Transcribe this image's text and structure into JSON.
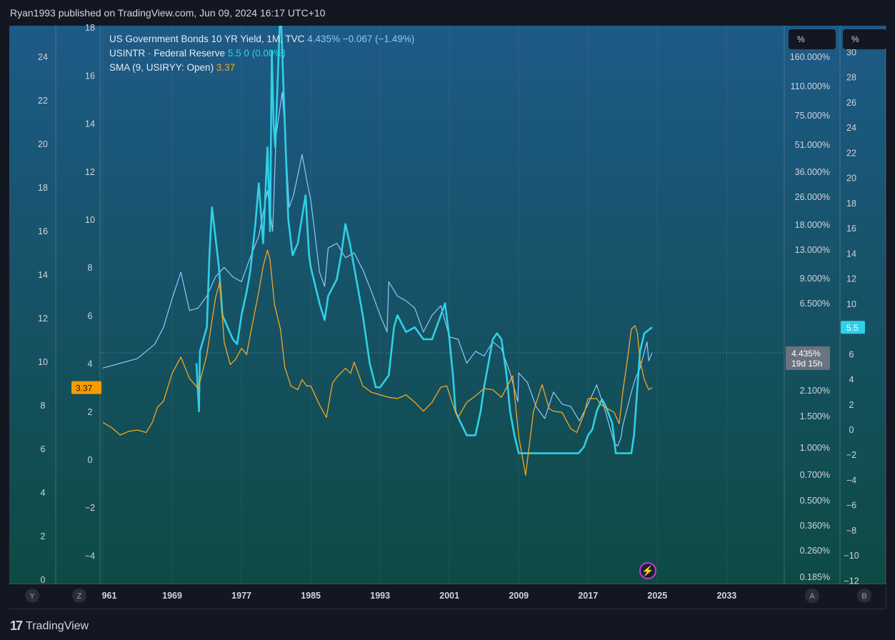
{
  "header": {
    "published_text": "Ryan1993 published on TradingView.com, Jun 09, 2024 16:17 UTC+10"
  },
  "footer": {
    "brand": "TradingView",
    "logo_glyph": "17"
  },
  "legend": {
    "bond": {
      "title": "US Government Bonds 10 YR Yield, 1M, TVC",
      "values": "4.435%  −0.067 (−1.49%)"
    },
    "fed": {
      "title": "USINTR · Federal Reserve",
      "values": "5.5  0 (0.00%)"
    },
    "sma": {
      "title": "SMA (9, USIRYY: Open)",
      "values": "3.37"
    }
  },
  "colors": {
    "bg_top": "#1e5a86",
    "bg_bottom": "#0e4a44",
    "bond": "#8fc8ff",
    "fed": "#2fd0e6",
    "sma": "#f5a623",
    "badge_bond": "#6b7280",
    "badge_fed": "#2fd0e6",
    "badge_sma": "#f59c00"
  },
  "axis_labels": {
    "outer_left": [
      "24",
      "22",
      "20",
      "18",
      "16",
      "14",
      "12",
      "10",
      "8",
      "6",
      "4",
      "2",
      "0"
    ],
    "inner_left": [
      "18",
      "16",
      "14",
      "12",
      "10",
      "8",
      "6",
      "4",
      "2",
      "0",
      "−2",
      "−4"
    ],
    "log_right": [
      "160.000%",
      "110.000%",
      "75.000%",
      "51.000%",
      "36.000%",
      "26.000%",
      "18.000%",
      "13.000%",
      "9.000%",
      "6.500%",
      "3.100%",
      "2.100%",
      "1.500%",
      "1.000%",
      "0.700%",
      "0.500%",
      "0.360%",
      "0.260%",
      "0.185%"
    ],
    "far_right": [
      "30",
      "28",
      "26",
      "24",
      "22",
      "20",
      "18",
      "16",
      "14",
      "12",
      "10",
      "8",
      "6",
      "4",
      "2",
      "0",
      "−2",
      "−4",
      "−6",
      "−8",
      "−10",
      "−12"
    ],
    "time": [
      "961",
      "1969",
      "1977",
      "1985",
      "1993",
      "2001",
      "2009",
      "2017",
      "2025",
      "2033"
    ],
    "pct_unit": "%",
    "scale_buttons": [
      "Y",
      "Z",
      "A",
      "B"
    ]
  },
  "badges": {
    "bond_value": "4.435%",
    "bond_countdown": "19d 15h",
    "fed_value": "5.5",
    "sma_value": "3.37"
  },
  "chart_data": {
    "type": "line",
    "x_unit": "year",
    "xlim": [
      1960.5,
      2037
    ],
    "series": [
      {
        "name": "US Government Bonds 10 YR Yield, 1M, TVC",
        "scale": "inner-left",
        "x": [
          1961,
          1963,
          1965,
          1967,
          1968,
          1969,
          1970,
          1971,
          1972,
          1973,
          1974,
          1975,
          1976,
          1977,
          1978,
          1979,
          1980,
          1980.6,
          1981,
          1981.7,
          1982,
          1982.5,
          1983,
          1984,
          1984.6,
          1985,
          1986,
          1986.6,
          1987,
          1988,
          1989,
          1990,
          1991,
          1992,
          1993,
          1993.8,
          1994,
          1995,
          1996,
          1997,
          1998,
          1999,
          2000,
          2001,
          2002,
          2003,
          2004,
          2005,
          2006,
          2007,
          2008,
          2008.9,
          2009,
          2010,
          2011,
          2012,
          2013,
          2014,
          2015,
          2016,
          2017,
          2018,
          2019,
          2020,
          2020.4,
          2020.8,
          2021,
          2022,
          2022.5,
          2023,
          2023.8,
          2024,
          2024.4
        ],
        "values": [
          3.8,
          4.0,
          4.2,
          4.8,
          5.5,
          6.7,
          7.8,
          6.2,
          6.3,
          6.8,
          7.6,
          8.0,
          7.6,
          7.4,
          8.4,
          9.3,
          11.2,
          9.5,
          13.5,
          15.3,
          13.8,
          10.5,
          11.0,
          12.7,
          11.5,
          10.8,
          7.8,
          7.2,
          8.8,
          9.0,
          8.4,
          8.6,
          7.9,
          7.0,
          6.0,
          5.3,
          7.4,
          6.8,
          6.6,
          6.3,
          5.3,
          6.0,
          6.4,
          5.1,
          5.0,
          4.0,
          4.5,
          4.3,
          4.9,
          4.6,
          3.6,
          2.4,
          3.6,
          3.2,
          2.2,
          1.7,
          2.8,
          2.3,
          2.2,
          1.6,
          2.3,
          3.1,
          2.0,
          0.7,
          0.55,
          0.9,
          1.4,
          2.8,
          3.4,
          3.8,
          4.9,
          4.1,
          4.44
        ]
      },
      {
        "name": "USINTR · Federal Reserve",
        "scale": "inner-left",
        "x": [
          1971.8,
          1972.1,
          1972.2,
          1973,
          1973.3,
          1973.6,
          1974.4,
          1974.8,
          1975.4,
          1976,
          1976.5,
          1977,
          1977.6,
          1978,
          1978.6,
          1979,
          1979.5,
          1980,
          1980.3,
          1980.5,
          1980.7,
          1980.9,
          1981.2,
          1981.5,
          1982,
          1982.4,
          1982.9,
          1983.5,
          1984.4,
          1984.8,
          1985,
          1986,
          1986.6,
          1987,
          1988,
          1988.5,
          1989,
          1989.5,
          1990,
          1991,
          1991.8,
          1992.5,
          1993,
          1994,
          1994.6,
          1995,
          1996,
          1997,
          1998,
          1999,
          2000,
          2000.5,
          2001,
          2001.4,
          2001.7,
          2002,
          2003,
          2004,
          2004.6,
          2005,
          2006,
          2006.5,
          2007,
          2007.6,
          2008,
          2008.5,
          2009,
          2010,
          2015.9,
          2016.5,
          2017,
          2017.5,
          2018,
          2018.6,
          2019,
          2019.8,
          2020.2,
          2021,
          2022,
          2022.3,
          2022.6,
          2022.9,
          2023,
          2023.5,
          2024.4
        ],
        "values": [
          4.0,
          2.0,
          4.5,
          5.5,
          8.5,
          10.5,
          8.0,
          6.0,
          5.5,
          5.0,
          4.8,
          6.0,
          7.0,
          7.8,
          9.8,
          11.5,
          9.0,
          13.0,
          9.5,
          17.0,
          14.0,
          13.0,
          16.0,
          19.0,
          14.0,
          10.0,
          8.5,
          9.0,
          11.0,
          8.5,
          8.0,
          6.5,
          5.8,
          6.8,
          7.5,
          8.5,
          9.8,
          9.0,
          8.0,
          6.0,
          4.0,
          3.0,
          3.0,
          3.5,
          5.5,
          6.0,
          5.3,
          5.5,
          5.0,
          5.0,
          6.0,
          6.5,
          5.0,
          3.5,
          2.0,
          1.75,
          1.0,
          1.0,
          2.0,
          3.0,
          5.0,
          5.25,
          5.0,
          3.5,
          2.0,
          1.0,
          0.25,
          0.25,
          0.25,
          0.5,
          1.0,
          1.25,
          2.0,
          2.5,
          2.25,
          1.5,
          0.25,
          0.25,
          0.25,
          1.0,
          2.5,
          4.0,
          4.5,
          5.25,
          5.5
        ]
      },
      {
        "name": "SMA (9, USIRYY: Open)",
        "scale": "far-right",
        "x": [
          1961,
          1962,
          1963,
          1964,
          1965,
          1966,
          1966.7,
          1967.3,
          1968,
          1969,
          1970,
          1971,
          1972,
          1973,
          1974,
          1974.5,
          1975,
          1975.7,
          1976.3,
          1977,
          1977.6,
          1978,
          1979,
          1979.5,
          1980,
          1980.3,
          1980.8,
          1981.5,
          1982,
          1982.7,
          1983.5,
          1984,
          1984.5,
          1985,
          1986,
          1986.8,
          1987.5,
          1988,
          1989,
          1989.6,
          1990,
          1991,
          1992,
          1993,
          1994,
          1995,
          1996,
          1997,
          1998,
          1999,
          2000,
          2000.7,
          2001.5,
          2002,
          2003,
          2004,
          2005,
          2006,
          2007,
          2008.3,
          2009,
          2009.8,
          2010.7,
          2011.7,
          2012.5,
          2013,
          2014,
          2015,
          2015.7,
          2016.5,
          2017,
          2018,
          2018.5,
          2019,
          2020,
          2020.6,
          2021,
          2021.5,
          2022,
          2022.4,
          2022.7,
          2023,
          2023.5,
          2024,
          2024.4
        ],
        "values": [
          0.6,
          0.2,
          -0.4,
          -0.1,
          0.0,
          -0.2,
          0.6,
          1.8,
          2.3,
          4.5,
          5.8,
          4.1,
          3.3,
          6.0,
          10.5,
          11.8,
          7.0,
          5.2,
          5.6,
          6.5,
          6.0,
          7.5,
          11.0,
          13.0,
          14.3,
          13.5,
          10.0,
          8.0,
          5.0,
          3.5,
          3.2,
          4.0,
          3.5,
          3.5,
          2.0,
          1.0,
          3.7,
          4.2,
          4.9,
          4.5,
          5.4,
          3.5,
          3.0,
          2.8,
          2.6,
          2.5,
          2.8,
          2.2,
          1.5,
          2.2,
          3.4,
          3.5,
          1.8,
          1.0,
          2.2,
          2.7,
          3.3,
          3.2,
          2.6,
          4.3,
          -0.5,
          -3.6,
          1.5,
          3.6,
          1.7,
          1.5,
          1.4,
          0.1,
          -0.2,
          1.2,
          2.5,
          2.5,
          2.0,
          1.8,
          1.4,
          0.5,
          3.0,
          5.4,
          8.0,
          8.3,
          7.7,
          5.5,
          4.0,
          3.2,
          3.37
        ]
      }
    ]
  }
}
